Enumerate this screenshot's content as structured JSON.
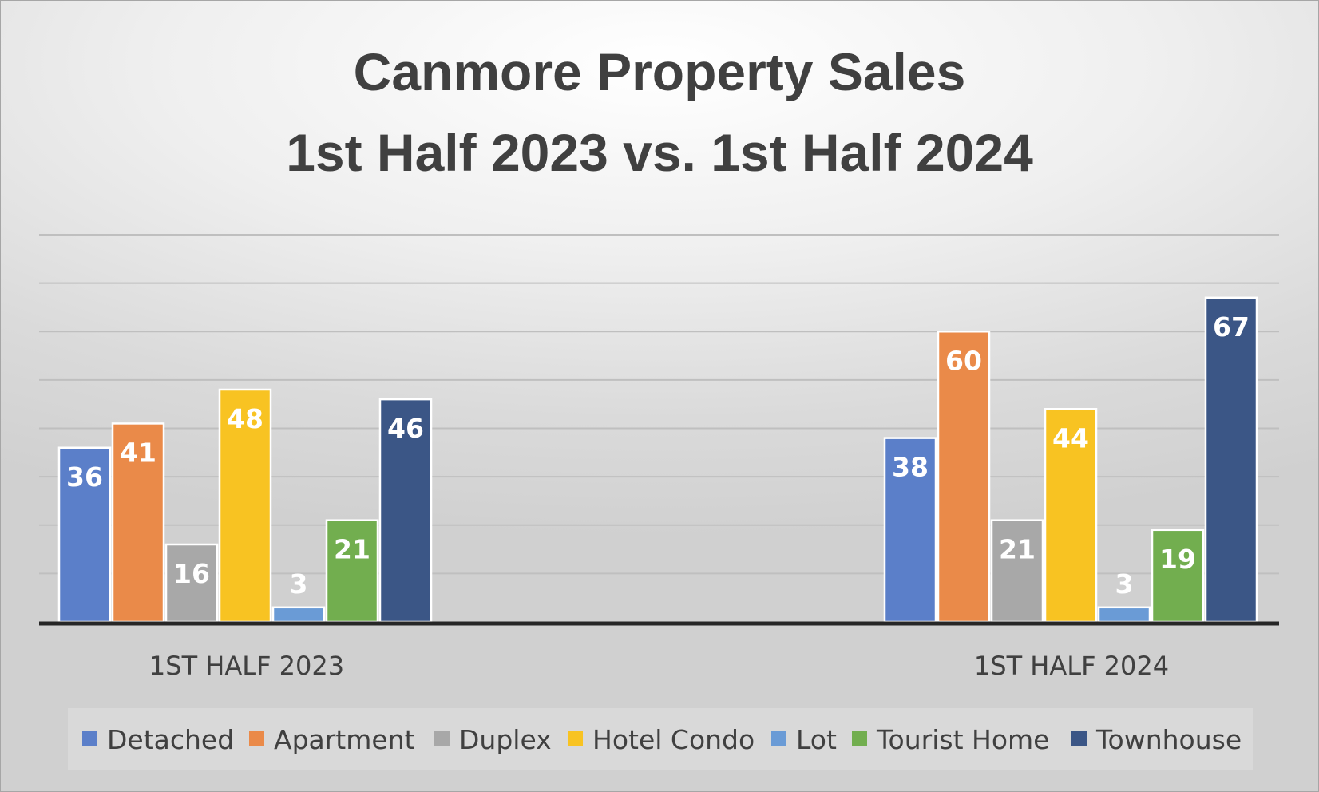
{
  "chart_data": {
    "type": "bar",
    "title": [
      "Canmore Property Sales",
      "1st Half 2023 vs. 1st Half 2024"
    ],
    "categories": [
      "1ST HALF 2023",
      "1ST HALF 2024"
    ],
    "series": [
      {
        "name": "Detached",
        "color": "#5b7fc9",
        "values": [
          36,
          38
        ]
      },
      {
        "name": "Apartment",
        "color": "#ea8a49",
        "values": [
          41,
          60
        ]
      },
      {
        "name": "Duplex",
        "color": "#a8a8a8",
        "values": [
          16,
          21
        ]
      },
      {
        "name": "Hotel Condo",
        "color": "#f8c322",
        "values": [
          48,
          44
        ]
      },
      {
        "name": "Lot",
        "color": "#6a9bd6",
        "values": [
          3,
          3
        ]
      },
      {
        "name": "Tourist Home",
        "color": "#72ae4f",
        "values": [
          21,
          19
        ]
      },
      {
        "name": "Townhouse",
        "color": "#3b5686",
        "values": [
          46,
          67
        ]
      }
    ],
    "ylim": [
      0,
      80
    ],
    "ytick_step": 10,
    "grid": true,
    "show_y_axis_labels": false,
    "data_labels": true,
    "legend_position": "bottom"
  }
}
